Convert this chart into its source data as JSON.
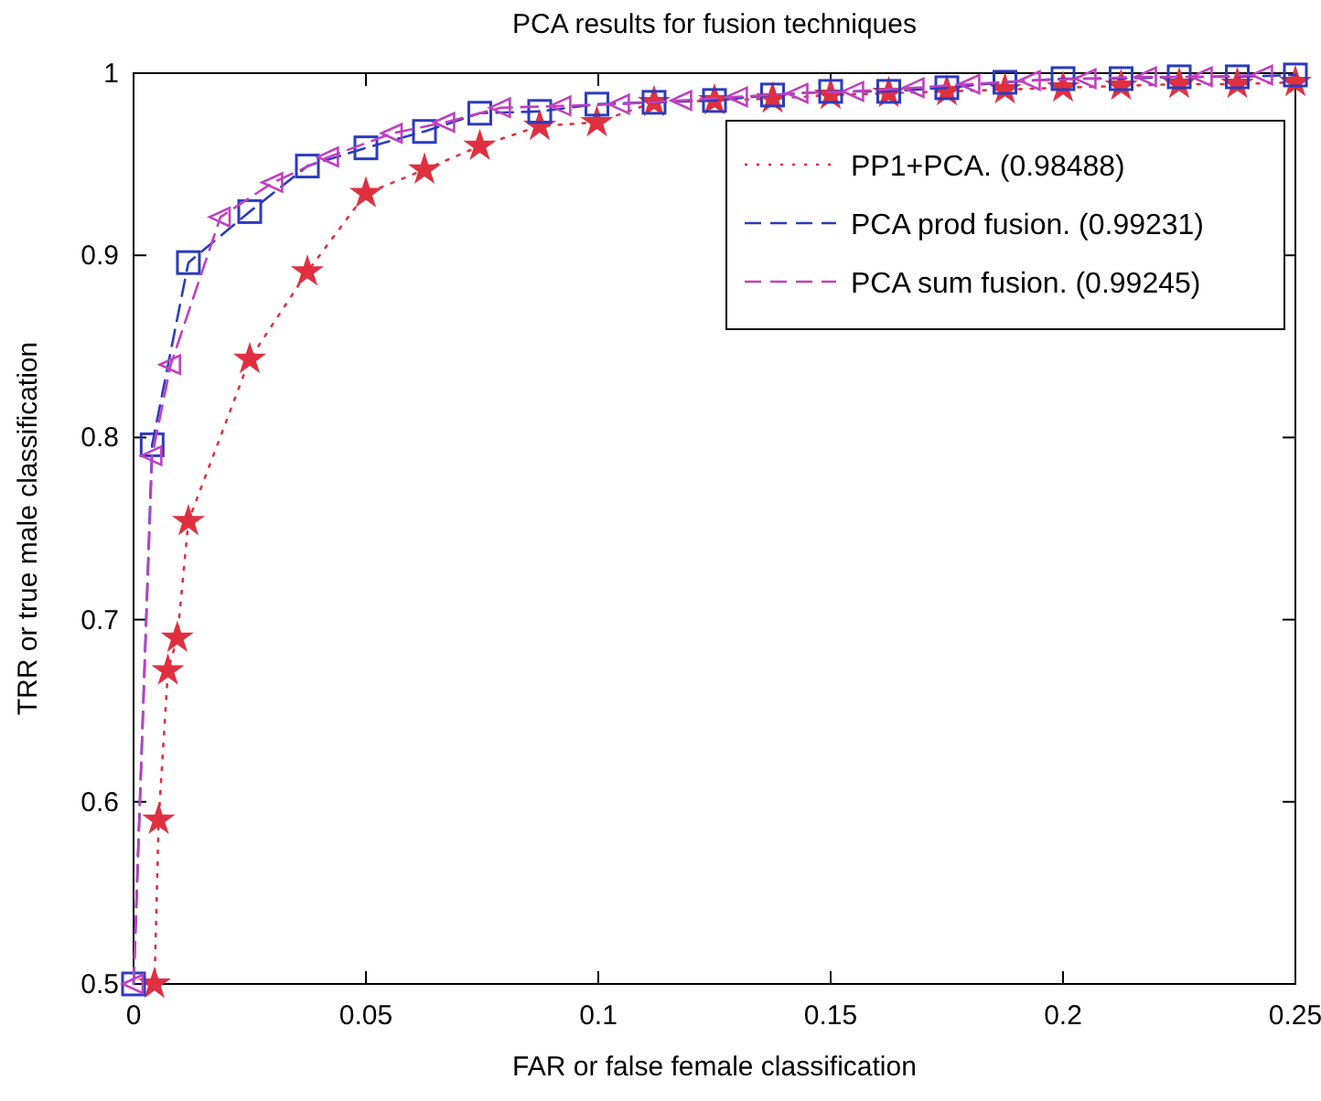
{
  "chart_data": {
    "type": "line",
    "title": "PCA results for fusion techniques",
    "xlabel": "FAR or false female classification",
    "ylabel": "TRR or true male classification",
    "xlim": [
      0,
      0.25
    ],
    "ylim": [
      0.5,
      1
    ],
    "xticks": [
      0,
      0.05,
      0.1,
      0.15,
      0.2,
      0.25
    ],
    "yticks": [
      0.5,
      0.6,
      0.7,
      0.8,
      0.9,
      1
    ],
    "grid": false,
    "legend": "top right",
    "series": [
      {
        "name": "PP1+PCA. (0.98488)",
        "color": "#e03040",
        "line_style": "dotted",
        "marker": "star",
        "x": [
          0.0045,
          0.0054,
          0.0074,
          0.0094,
          0.0118,
          0.025,
          0.0374,
          0.05,
          0.0626,
          0.0745,
          0.0874,
          0.0997,
          0.112,
          0.125,
          0.1375,
          0.15,
          0.1625,
          0.175,
          0.1875,
          0.2,
          0.2125,
          0.225,
          0.2375,
          0.25
        ],
        "values": [
          0.5,
          0.59,
          0.672,
          0.69,
          0.754,
          0.843,
          0.891,
          0.934,
          0.947,
          0.96,
          0.971,
          0.973,
          0.984,
          0.985,
          0.986,
          0.988,
          0.989,
          0.99,
          0.991,
          0.992,
          0.993,
          0.994,
          0.994,
          0.995
        ]
      },
      {
        "name": "PCA prod fusion. (0.99231)",
        "color": "#2b3bc0",
        "line_style": "dashed",
        "marker": "square",
        "x": [
          0,
          0.004,
          0.0118,
          0.025,
          0.0374,
          0.05,
          0.0626,
          0.0745,
          0.0874,
          0.0997,
          0.112,
          0.125,
          0.1375,
          0.15,
          0.1625,
          0.175,
          0.1875,
          0.2,
          0.2125,
          0.225,
          0.2375,
          0.25
        ],
        "values": [
          0.5,
          0.796,
          0.896,
          0.924,
          0.949,
          0.959,
          0.968,
          0.978,
          0.979,
          0.983,
          0.984,
          0.985,
          0.988,
          0.99,
          0.99,
          0.992,
          0.995,
          0.997,
          0.997,
          0.998,
          0.998,
          0.999
        ]
      },
      {
        "name": "PCA sum fusion. (0.99245)",
        "color": "#c040c0",
        "line_style": "dashed",
        "marker": "triangle",
        "x": [
          0,
          0.004,
          0.008,
          0.0187,
          0.03,
          0.042,
          0.0557,
          0.067,
          0.079,
          0.092,
          0.1046,
          0.118,
          0.13,
          0.143,
          0.155,
          0.168,
          0.18,
          0.193,
          0.205,
          0.218,
          0.23,
          0.243
        ],
        "values": [
          0.5,
          0.79,
          0.84,
          0.921,
          0.94,
          0.954,
          0.967,
          0.973,
          0.981,
          0.982,
          0.983,
          0.985,
          0.987,
          0.989,
          0.99,
          0.992,
          0.994,
          0.996,
          0.997,
          0.998,
          0.998,
          0.999
        ]
      }
    ]
  }
}
